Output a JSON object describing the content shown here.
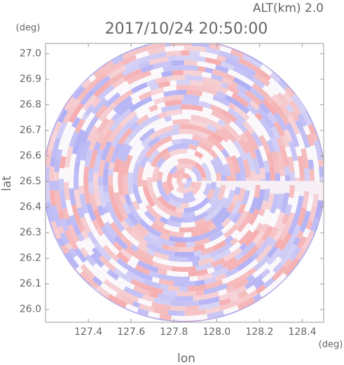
{
  "chart_data": {
    "type": "radar-image",
    "title": "2017/10/24 20:50:00",
    "subtitle": "ALT(km) 2.0",
    "x_label": "lon",
    "x_unit": "(deg)",
    "y_label": "lat",
    "y_unit": "(deg)",
    "xlim": [
      127.2,
      128.5
    ],
    "xticks": [
      127.4,
      127.6,
      127.8,
      {
        "value": 128,
        "label": "128.0"
      },
      128.2,
      128.4
    ],
    "ylim": [
      25.95,
      27.04
    ],
    "yticks": [
      {
        "value": 26,
        "label": "26.0"
      },
      26.1,
      26.2,
      26.3,
      26.4,
      26.5,
      26.6,
      26.7,
      26.8,
      26.9,
      {
        "value": 27,
        "label": "27.0"
      }
    ]
  }
}
